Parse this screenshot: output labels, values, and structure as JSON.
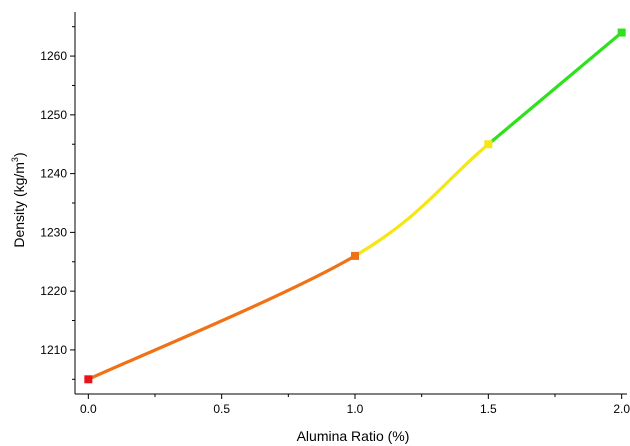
{
  "chart_data": {
    "type": "line",
    "xlabel": "Alumina Ratio (%)",
    "ylabel_main": "Density (kg/m",
    "ylabel_sup": "3",
    "ylabel_tail": ")",
    "xlim": [
      -0.05,
      2.02
    ],
    "ylim": [
      1202.5,
      1267.5
    ],
    "x_ticks": [
      0.0,
      0.5,
      1.0,
      1.5,
      2.0
    ],
    "x_tick_labels": [
      "0.0",
      "0.5",
      "1.0",
      "1.5",
      "2.0"
    ],
    "y_ticks": [
      1210,
      1220,
      1230,
      1240,
      1250,
      1260
    ],
    "y_tick_labels": [
      "1210",
      "1220",
      "1230",
      "1240",
      "1250",
      "1260"
    ],
    "grid": false,
    "legend": "none",
    "points": [
      {
        "x": 0.0,
        "y": 1205,
        "color": "#e8141c"
      },
      {
        "x": 1.0,
        "y": 1226,
        "color": "#ef7216"
      },
      {
        "x": 1.5,
        "y": 1245,
        "color": "#f5e614"
      },
      {
        "x": 2.0,
        "y": 1264,
        "color": "#2de11c"
      }
    ],
    "segments": [
      {
        "from": 0,
        "to": 1,
        "color": "#ef7216"
      },
      {
        "from": 1,
        "to": 2,
        "color": "#f5e614"
      },
      {
        "from": 2,
        "to": 3,
        "color": "#2de11c"
      }
    ]
  }
}
